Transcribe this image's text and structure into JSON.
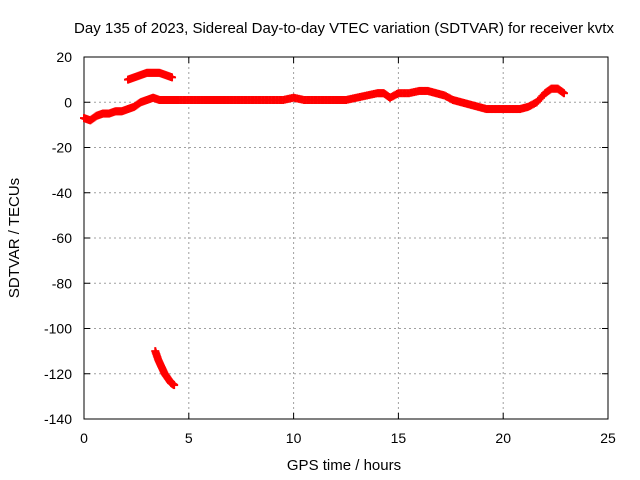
{
  "chart_data": {
    "type": "scatter",
    "title": "Day 135 of 2023, Sidereal Day-to-day VTEC variation (SDTVAR) for receiver kvtx",
    "xlabel": "GPS time / hours",
    "ylabel": "SDTVAR / TECUs",
    "xlim": [
      0,
      25
    ],
    "ylim": [
      -140,
      20
    ],
    "xticks": [
      0,
      5,
      10,
      15,
      20,
      25
    ],
    "yticks": [
      -140,
      -120,
      -100,
      -80,
      -60,
      -40,
      -20,
      0,
      20
    ],
    "grid": true,
    "marker": "+",
    "color": "#ff0000",
    "series": [
      {
        "name": "main-trace",
        "x": [
          0.0,
          0.3,
          0.6,
          0.9,
          1.2,
          1.5,
          1.8,
          2.1,
          2.4,
          2.7,
          3.0,
          3.3,
          3.6,
          3.9,
          4.2,
          4.5,
          5.0,
          5.5,
          6.0,
          6.5,
          7.0,
          7.5,
          8.0,
          8.5,
          9.0,
          9.5,
          10.0,
          10.5,
          11.0,
          11.5,
          12.0,
          12.5,
          13.0,
          13.5,
          14.0,
          14.3,
          14.6,
          15.0,
          15.5,
          16.0,
          16.4,
          16.8,
          17.2,
          17.6,
          18.0,
          18.4,
          18.8,
          19.2,
          19.6,
          20.0,
          20.4,
          20.8,
          21.2,
          21.6,
          22.0,
          22.3,
          22.6,
          22.9
        ],
        "y": [
          -7,
          -8,
          -6,
          -5,
          -5,
          -4,
          -4,
          -3,
          -2,
          0,
          1,
          2,
          1,
          1,
          1,
          1,
          1,
          1,
          1,
          1,
          1,
          1,
          1,
          1,
          1,
          1,
          2,
          1,
          1,
          1,
          1,
          1,
          2,
          3,
          4,
          4,
          2,
          4,
          4,
          5,
          5,
          4,
          3,
          1,
          0,
          -1,
          -2,
          -3,
          -3,
          -3,
          -3,
          -3,
          -2,
          0,
          4,
          6,
          6,
          4
        ]
      },
      {
        "name": "upper-arc",
        "x": [
          2.1,
          2.4,
          2.7,
          3.0,
          3.3,
          3.6,
          3.9,
          4.2
        ],
        "y": [
          10,
          11,
          12,
          13,
          13,
          13,
          12,
          11
        ]
      },
      {
        "name": "low-outlier",
        "x": [
          3.4,
          3.55,
          3.7,
          3.85,
          4.0,
          4.15,
          4.3
        ],
        "y": [
          -110,
          -114,
          -117,
          -120,
          -122,
          -124,
          -125
        ]
      }
    ]
  }
}
